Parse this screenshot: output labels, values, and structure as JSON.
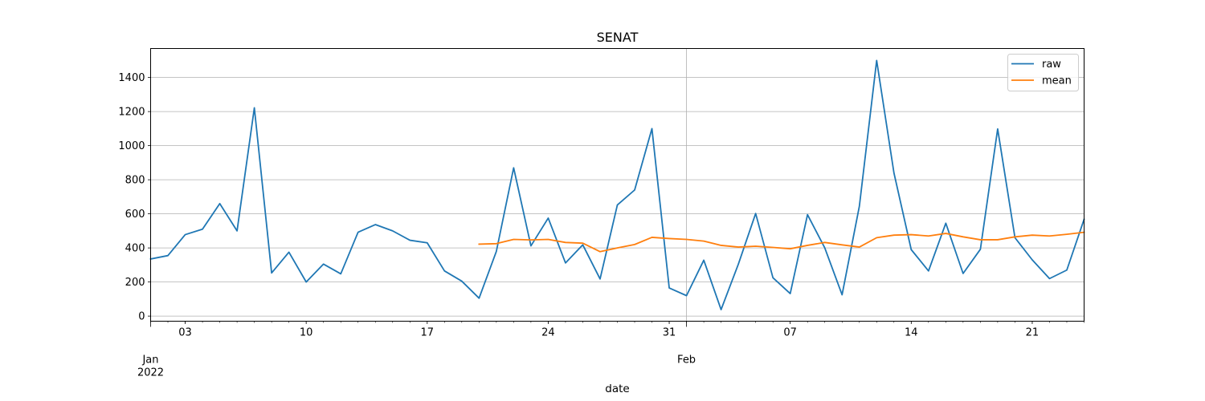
{
  "chart_data": {
    "type": "line",
    "title": "SENAT",
    "xlabel": "date",
    "ylabel": "",
    "x": [
      "2022-01-01",
      "2022-01-02",
      "2022-01-03",
      "2022-01-04",
      "2022-01-05",
      "2022-01-06",
      "2022-01-07",
      "2022-01-08",
      "2022-01-09",
      "2022-01-10",
      "2022-01-11",
      "2022-01-12",
      "2022-01-13",
      "2022-01-14",
      "2022-01-15",
      "2022-01-16",
      "2022-01-17",
      "2022-01-18",
      "2022-01-19",
      "2022-01-20",
      "2022-01-21",
      "2022-01-22",
      "2022-01-23",
      "2022-01-24",
      "2022-01-25",
      "2022-01-26",
      "2022-01-27",
      "2022-01-28",
      "2022-01-29",
      "2022-01-30",
      "2022-01-31",
      "2022-02-01",
      "2022-02-02",
      "2022-02-03",
      "2022-02-04",
      "2022-02-05",
      "2022-02-06",
      "2022-02-07",
      "2022-02-08",
      "2022-02-09",
      "2022-02-10",
      "2022-02-11",
      "2022-02-12",
      "2022-02-13",
      "2022-02-14",
      "2022-02-15",
      "2022-02-16",
      "2022-02-17",
      "2022-02-18",
      "2022-02-19",
      "2022-02-20",
      "2022-02-21",
      "2022-02-22",
      "2022-02-23",
      "2022-02-24"
    ],
    "xlim": [
      "2022-01-01",
      "2022-02-24"
    ],
    "ylim": [
      -30,
      1570
    ],
    "grid": true,
    "legend_position": "top-right",
    "y_ticks": [
      0,
      200,
      400,
      600,
      800,
      1000,
      1200,
      1400
    ],
    "x_ticks": [
      {
        "date": "2022-01-03",
        "label": "03"
      },
      {
        "date": "2022-01-10",
        "label": "10"
      },
      {
        "date": "2022-01-17",
        "label": "17"
      },
      {
        "date": "2022-01-24",
        "label": "24"
      },
      {
        "date": "2022-01-31",
        "label": "31"
      },
      {
        "date": "2022-02-07",
        "label": "07"
      },
      {
        "date": "2022-02-14",
        "label": "14"
      },
      {
        "date": "2022-02-21",
        "label": "21"
      }
    ],
    "major_ticks": [
      {
        "date": "2022-01-01",
        "label": "Jan",
        "sublabel": "2022"
      },
      {
        "date": "2022-02-01",
        "label": "Feb",
        "sublabel": ""
      }
    ],
    "series": [
      {
        "name": "raw",
        "color": "#1f77b4",
        "values": [
          335,
          355,
          478,
          510,
          660,
          500,
          1222,
          253,
          375,
          200,
          305,
          248,
          492,
          537,
          500,
          445,
          430,
          265,
          205,
          105,
          380,
          870,
          412,
          575,
          312,
          418,
          218,
          652,
          740,
          1100,
          165,
          120,
          328,
          38,
          305,
          602,
          225,
          132,
          595,
          400,
          125,
          645,
          1500,
          840,
          390,
          265,
          545,
          250,
          392,
          1098,
          460,
          330,
          220,
          270,
          568
        ]
      },
      {
        "name": "mean",
        "color": "#ff7f0e",
        "values": [
          null,
          null,
          null,
          null,
          null,
          null,
          null,
          null,
          null,
          null,
          null,
          null,
          null,
          null,
          null,
          null,
          null,
          null,
          null,
          422,
          425,
          450,
          447,
          450,
          432,
          428,
          378,
          400,
          420,
          462,
          455,
          450,
          440,
          415,
          405,
          410,
          403,
          395,
          415,
          432,
          418,
          405,
          460,
          475,
          478,
          470,
          485,
          465,
          448,
          448,
          465,
          475,
          470,
          480,
          492
        ]
      }
    ]
  }
}
